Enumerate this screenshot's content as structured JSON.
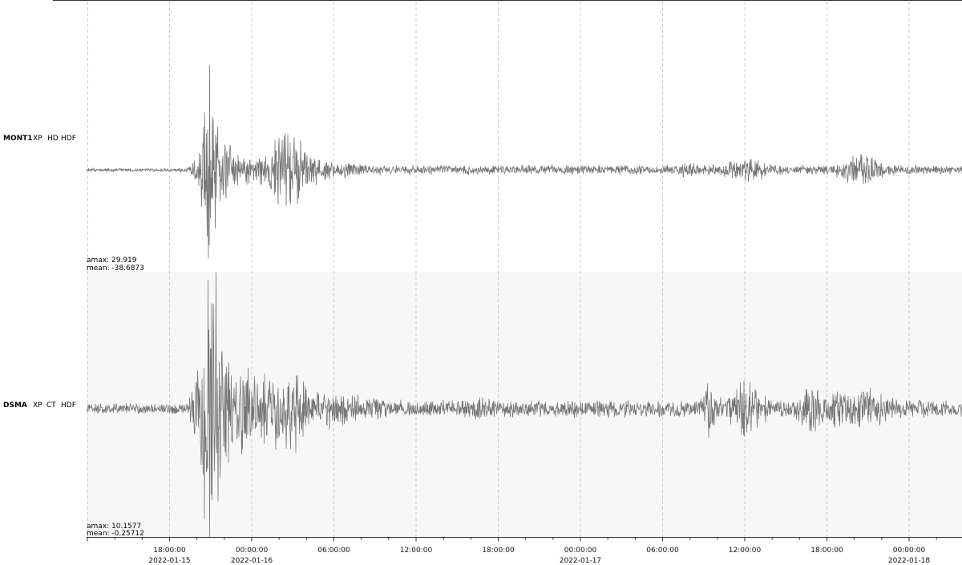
{
  "chart_data": {
    "type": "line",
    "traces": [
      {
        "station": "MONT1",
        "network": "XP",
        "location": "HD",
        "channel": "HDF",
        "amax": "amax: 29.919",
        "mean": "mean: -38.6873",
        "background": "#ffffff"
      },
      {
        "station": "DSMA",
        "network": "XP",
        "location": "CT",
        "channel": "HDF",
        "amax": "amax: 10.1577",
        "mean": "mean: -0.25712",
        "background": "#f7f7f7"
      }
    ],
    "x_ticks": [
      {
        "time": "18:00:00",
        "date": "2022-01-15"
      },
      {
        "time": "00:00:00",
        "date": "2022-01-16"
      },
      {
        "time": "06:00:00",
        "date": ""
      },
      {
        "time": "12:00:00",
        "date": ""
      },
      {
        "time": "18:00:00",
        "date": ""
      },
      {
        "time": "00:00:00",
        "date": "2022-01-17"
      },
      {
        "time": "06:00:00",
        "date": ""
      },
      {
        "time": "12:00:00",
        "date": ""
      },
      {
        "time": "18:00:00",
        "date": ""
      },
      {
        "time": "00:00:00",
        "date": "2022-01-18"
      }
    ],
    "grid": true,
    "colors": {
      "trace": "#777777",
      "grid": "#cccccc",
      "axis": "#333333"
    }
  }
}
